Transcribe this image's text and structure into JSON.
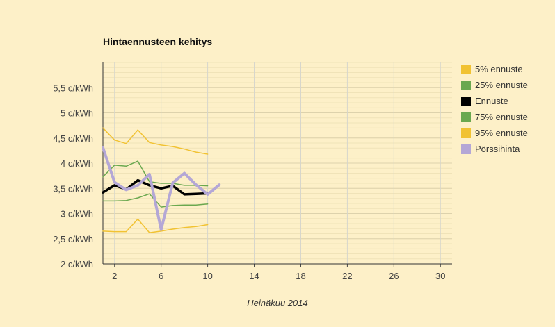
{
  "chart_data": {
    "type": "line",
    "title": "Hintaennusteen kehitys",
    "xlabel": "Heinäkuu 2014",
    "ylabel": "",
    "xlim": [
      1,
      31
    ],
    "ylim": [
      2,
      6
    ],
    "xticks": [
      2,
      6,
      10,
      14,
      18,
      22,
      26,
      30
    ],
    "yticks": [
      {
        "value": 2,
        "label": "2 c/kWh"
      },
      {
        "value": 2.5,
        "label": "2,5 c/kWh"
      },
      {
        "value": 3,
        "label": "3 c/kWh"
      },
      {
        "value": 3.5,
        "label": "3,5 c/kWh"
      },
      {
        "value": 4,
        "label": "4 c/kWh"
      },
      {
        "value": 4.5,
        "label": "4,5 c/kWh"
      },
      {
        "value": 5,
        "label": "5 c/kWh"
      },
      {
        "value": 5.5,
        "label": "5,5 c/kWh"
      }
    ],
    "grid": true,
    "legend_position": "right",
    "series": [
      {
        "name": "5% ennuste",
        "color": "#f1c232",
        "width": 1.5,
        "x": [
          1,
          2,
          3,
          4,
          5,
          6,
          7,
          8,
          9,
          10
        ],
        "y": [
          2.65,
          2.64,
          2.64,
          2.89,
          2.62,
          2.65,
          2.69,
          2.72,
          2.74,
          2.78
        ]
      },
      {
        "name": "25% ennuste",
        "color": "#6aa84f",
        "width": 1.5,
        "x": [
          1,
          2,
          3,
          4,
          5,
          6,
          7,
          8,
          9,
          10
        ],
        "y": [
          3.25,
          3.25,
          3.26,
          3.31,
          3.39,
          3.13,
          3.16,
          3.17,
          3.17,
          3.19
        ]
      },
      {
        "name": "Ennuste",
        "color": "#000000",
        "width": 3.5,
        "x": [
          1,
          2,
          3,
          4,
          5,
          6,
          7,
          8,
          9,
          10
        ],
        "y": [
          3.42,
          3.56,
          3.48,
          3.66,
          3.56,
          3.5,
          3.55,
          3.38,
          3.39,
          3.4
        ]
      },
      {
        "name": "75% ennuste",
        "color": "#6aa84f",
        "width": 1.5,
        "x": [
          1,
          2,
          3,
          4,
          5,
          6,
          7,
          8,
          9,
          10
        ],
        "y": [
          3.73,
          3.96,
          3.94,
          4.04,
          3.63,
          3.6,
          3.6,
          3.56,
          3.56,
          3.55
        ]
      },
      {
        "name": "95% ennuste",
        "color": "#f1c232",
        "width": 1.5,
        "x": [
          1,
          2,
          3,
          4,
          5,
          6,
          7,
          8,
          9,
          10
        ],
        "y": [
          4.7,
          4.46,
          4.39,
          4.66,
          4.41,
          4.36,
          4.33,
          4.28,
          4.22,
          4.18
        ]
      },
      {
        "name": "Pörssihinta",
        "color": "#b4a7d6",
        "width": 4,
        "x": [
          1,
          2,
          3,
          4,
          5,
          6,
          7,
          8,
          9,
          10,
          11
        ],
        "y": [
          4.31,
          3.62,
          3.47,
          3.56,
          3.78,
          2.68,
          3.61,
          3.8,
          3.57,
          3.38,
          3.57
        ]
      }
    ]
  }
}
